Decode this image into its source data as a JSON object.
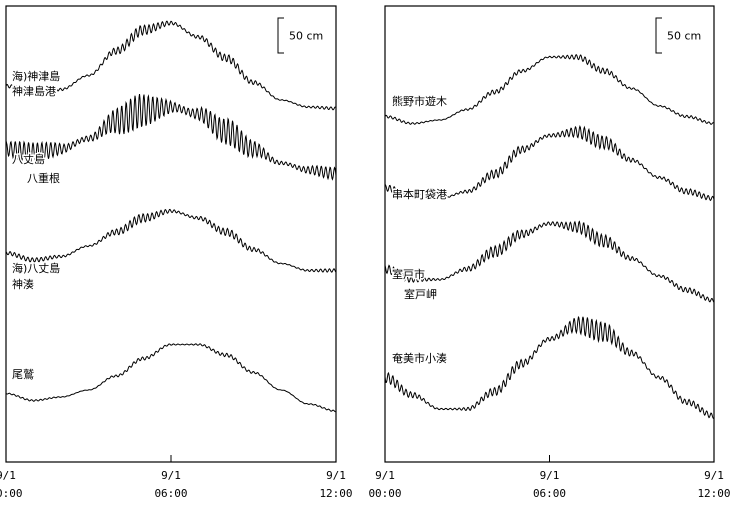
{
  "chart_data": [
    {
      "type": "line",
      "scale_bar": "50 cm",
      "x_ticks": [
        {
          "date": "9/1",
          "time": "00:00"
        },
        {
          "date": "9/1",
          "time": "06:00"
        },
        {
          "date": "9/1",
          "time": "12:00"
        }
      ],
      "series": [
        {
          "name": "海)神津島\n神津島港",
          "t_hours": [
            0,
            1,
            2,
            3,
            4,
            5,
            6,
            7,
            8,
            9,
            10,
            11,
            12
          ],
          "level_cm": [
            -30,
            -40,
            -35,
            -15,
            20,
            50,
            60,
            40,
            10,
            -25,
            -50,
            -60,
            -62
          ],
          "oscillation_cm": 6
        },
        {
          "name": "八丈島\n八重根",
          "t_hours": [
            0,
            1,
            2,
            3,
            4,
            5,
            6,
            7,
            8,
            9,
            10,
            11,
            12
          ],
          "level_cm": [
            -20,
            -25,
            -20,
            -5,
            20,
            35,
            40,
            30,
            5,
            -20,
            -40,
            -50,
            -55
          ],
          "oscillation_cm": 22
        },
        {
          "name": "海)八丈島\n神湊",
          "t_hours": [
            0,
            1,
            2,
            3,
            4,
            5,
            6,
            7,
            8,
            9,
            10,
            11,
            12
          ],
          "level_cm": [
            -40,
            -50,
            -45,
            -30,
            -10,
            10,
            20,
            10,
            -10,
            -35,
            -55,
            -65,
            -65
          ],
          "oscillation_cm": 7
        },
        {
          "name": "尾鷲",
          "t_hours": [
            0,
            1,
            2,
            3,
            4,
            5,
            6,
            7,
            8,
            9,
            10,
            11,
            12
          ],
          "level_cm": [
            -55,
            -65,
            -60,
            -50,
            -30,
            -5,
            15,
            15,
            0,
            -25,
            -50,
            -70,
            -80
          ],
          "oscillation_cm": 3
        }
      ]
    },
    {
      "type": "line",
      "scale_bar": "50 cm",
      "x_ticks": [
        {
          "date": "9/1",
          "time": "00:00"
        },
        {
          "date": "9/1",
          "time": "06:00"
        },
        {
          "date": "9/1",
          "time": "12:00"
        }
      ],
      "series": [
        {
          "name": "熊野市遊木",
          "t_hours": [
            0,
            1,
            2,
            3,
            4,
            5,
            6,
            7,
            8,
            9,
            10,
            11,
            12
          ],
          "level_cm": [
            -45,
            -55,
            -50,
            -35,
            -10,
            20,
            40,
            40,
            20,
            -5,
            -30,
            -45,
            -55
          ],
          "oscillation_cm": 4
        },
        {
          "name": "串本町袋港",
          "t_hours": [
            0,
            1,
            2,
            3,
            4,
            5,
            6,
            7,
            8,
            9,
            10,
            11,
            12
          ],
          "level_cm": [
            -40,
            -50,
            -55,
            -45,
            -20,
            15,
            35,
            40,
            25,
            0,
            -25,
            -45,
            -55
          ],
          "oscillation_cm": 9
        },
        {
          "name": "室戸市\n室戸岬",
          "t_hours": [
            0,
            1,
            2,
            3,
            4,
            5,
            6,
            7,
            8,
            9,
            10,
            11,
            12
          ],
          "level_cm": [
            -20,
            -35,
            -35,
            -20,
            5,
            30,
            45,
            40,
            20,
            -5,
            -30,
            -50,
            -65
          ],
          "oscillation_cm": 9
        },
        {
          "name": "奄美市小湊",
          "t_hours": [
            0,
            1,
            2,
            3,
            4,
            5,
            6,
            7,
            8,
            9,
            10,
            11,
            12
          ],
          "level_cm": [
            -25,
            -50,
            -70,
            -70,
            -45,
            -5,
            30,
            50,
            40,
            10,
            -25,
            -60,
            -80
          ],
          "oscillation_cm": 12
        }
      ]
    }
  ]
}
